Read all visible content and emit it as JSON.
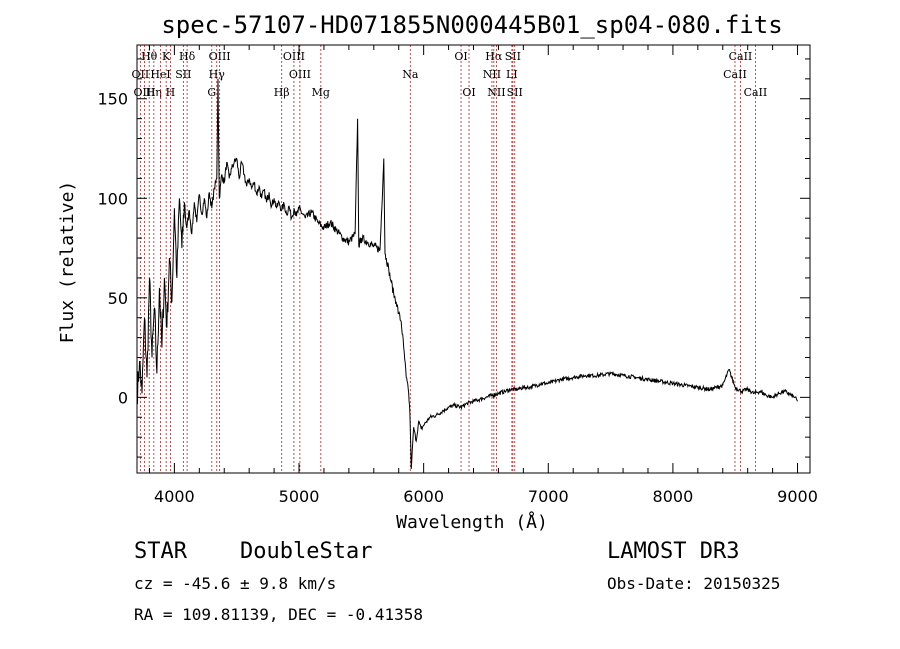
{
  "chart_data": {
    "type": "line",
    "title": "spec-57107-HD071855N000445B01_sp04-080.fits",
    "xlabel": "Wavelength (Å)",
    "ylabel": "Flux (relative)",
    "xlim": [
      3700,
      9100
    ],
    "ylim": [
      -38,
      177
    ],
    "xticks": [
      4000,
      5000,
      6000,
      7000,
      8000,
      9000
    ],
    "xtick_labels": [
      "4000",
      "5000",
      "6000",
      "7000",
      "8000",
      "9000"
    ],
    "yticks": [
      0,
      50,
      100,
      150
    ],
    "ytick_labels": [
      "0",
      "50",
      "100",
      "150"
    ],
    "grid": false,
    "series": [
      {
        "x": [
          3700,
          3720,
          3740,
          3760,
          3780,
          3800,
          3820,
          3840,
          3860,
          3880,
          3900,
          3920,
          3940,
          3960,
          3980,
          4000,
          4020,
          4040,
          4060,
          4080,
          4100,
          4120,
          4140,
          4160,
          4180,
          4200,
          4220,
          4240,
          4260,
          4280,
          4300,
          4320,
          4340,
          4350,
          4360,
          4380,
          4400,
          4420,
          4440,
          4460,
          4480,
          4500,
          4520,
          4540,
          4560,
          4580,
          4600,
          4620,
          4640,
          4660,
          4680,
          4700,
          4720,
          4740,
          4760,
          4780,
          4800,
          4820,
          4840,
          4860,
          4880,
          4900,
          4920,
          4940,
          4960,
          4980,
          5000,
          5050,
          5100,
          5150,
          5200,
          5250,
          5300,
          5350,
          5400,
          5450,
          5470,
          5480,
          5500,
          5550,
          5600,
          5650,
          5680,
          5690,
          5700,
          5720,
          5740,
          5760,
          5780,
          5800,
          5820,
          5840,
          5860,
          5880,
          5890,
          5900,
          5920,
          5940,
          5960,
          5980,
          6000,
          6050,
          6100,
          6150,
          6200,
          6250,
          6300,
          6350,
          6400,
          6450,
          6500,
          6550,
          6600,
          6650,
          6700,
          6750,
          6800,
          6850,
          6900,
          6950,
          7000,
          7100,
          7200,
          7300,
          7400,
          7500,
          7600,
          7700,
          7800,
          7900,
          8000,
          8100,
          8200,
          8300,
          8400,
          8450,
          8500,
          8550,
          8600,
          8650,
          8700,
          8750,
          8800,
          8850,
          8900,
          8950,
          8980,
          9000
        ],
        "values": [
          0,
          18,
          2,
          40,
          10,
          60,
          20,
          45,
          12,
          55,
          25,
          60,
          35,
          70,
          48,
          95,
          60,
          100,
          75,
          98,
          85,
          94,
          82,
          98,
          88,
          102,
          92,
          100,
          90,
          103,
          95,
          105,
          110,
          160,
          100,
          112,
          108,
          118,
          110,
          115,
          118,
          120,
          110,
          118,
          112,
          106,
          110,
          105,
          108,
          102,
          106,
          100,
          104,
          98,
          103,
          96,
          100,
          95,
          98,
          94,
          97,
          92,
          96,
          90,
          95,
          91,
          95,
          90,
          93,
          88,
          85,
          88,
          84,
          80,
          78,
          82,
          140,
          76,
          80,
          78,
          76,
          74,
          120,
          72,
          70,
          64,
          58,
          52,
          48,
          42,
          38,
          25,
          10,
          2,
          -8,
          -36,
          -15,
          -22,
          -12,
          -16,
          -14,
          -10,
          -9,
          -7,
          -5,
          -4,
          -5,
          -3,
          -2,
          -1,
          0,
          1,
          2,
          3,
          4,
          4,
          5,
          5,
          6,
          7,
          7,
          9,
          10,
          11,
          11,
          12,
          11,
          10,
          9,
          8,
          7,
          6,
          5,
          4,
          6,
          14,
          5,
          3,
          4,
          2,
          3,
          1,
          0,
          2,
          3,
          1,
          0,
          -2
        ]
      }
    ],
    "lines": [
      {
        "label": "Hθ",
        "wl": 3798,
        "row": 0
      },
      {
        "label": "OII",
        "wl": 3727,
        "row": 1
      },
      {
        "label": "OIII",
        "wl": 3760,
        "row": 2
      },
      {
        "label": "Hη",
        "wl": 3835,
        "row": 2
      },
      {
        "label": "K",
        "wl": 3934,
        "row": 0
      },
      {
        "label": "HeI",
        "wl": 3889,
        "row": 1
      },
      {
        "label": "H",
        "wl": 3968,
        "row": 2
      },
      {
        "label": "SII",
        "wl": 4072,
        "row": 1
      },
      {
        "label": "Hδ",
        "wl": 4102,
        "row": 0
      },
      {
        "label": "OIII",
        "wl": 4363,
        "row": 0
      },
      {
        "label": "Hγ",
        "wl": 4340,
        "row": 1
      },
      {
        "label": "G",
        "wl": 4300,
        "row": 2
      },
      {
        "label": "OIII",
        "wl": 4959,
        "row": 0
      },
      {
        "label": "OIII",
        "wl": 5007,
        "row": 1
      },
      {
        "label": "Hβ",
        "wl": 4861,
        "row": 2
      },
      {
        "label": "Mg",
        "wl": 5175,
        "row": 2
      },
      {
        "label": "Na",
        "wl": 5893,
        "row": 1
      },
      {
        "label": "OI",
        "wl": 6300,
        "row": 0
      },
      {
        "label": "OI",
        "wl": 6364,
        "row": 2
      },
      {
        "label": "Hα",
        "wl": 6563,
        "row": 0
      },
      {
        "label": "NII",
        "wl": 6548,
        "row": 1
      },
      {
        "label": "NII",
        "wl": 6584,
        "row": 2
      },
      {
        "label": "SII",
        "wl": 6716,
        "row": 0
      },
      {
        "label": "LI",
        "wl": 6708,
        "row": 1
      },
      {
        "label": "SII",
        "wl": 6731,
        "row": 2
      },
      {
        "label": "CaII",
        "wl": 8542,
        "row": 0
      },
      {
        "label": "CaII",
        "wl": 8498,
        "row": 1
      },
      {
        "label": "CaII",
        "wl": 8662,
        "row": 2
      }
    ]
  },
  "footer": {
    "class": "STAR",
    "subclass": "DoubleStar",
    "survey": "LAMOST DR3",
    "cz": "cz = -45.6 ± 9.8 km/s",
    "obs_date": "Obs-Date: 20150325",
    "radec": "RA = 109.81139, DEC =  -0.41358"
  }
}
